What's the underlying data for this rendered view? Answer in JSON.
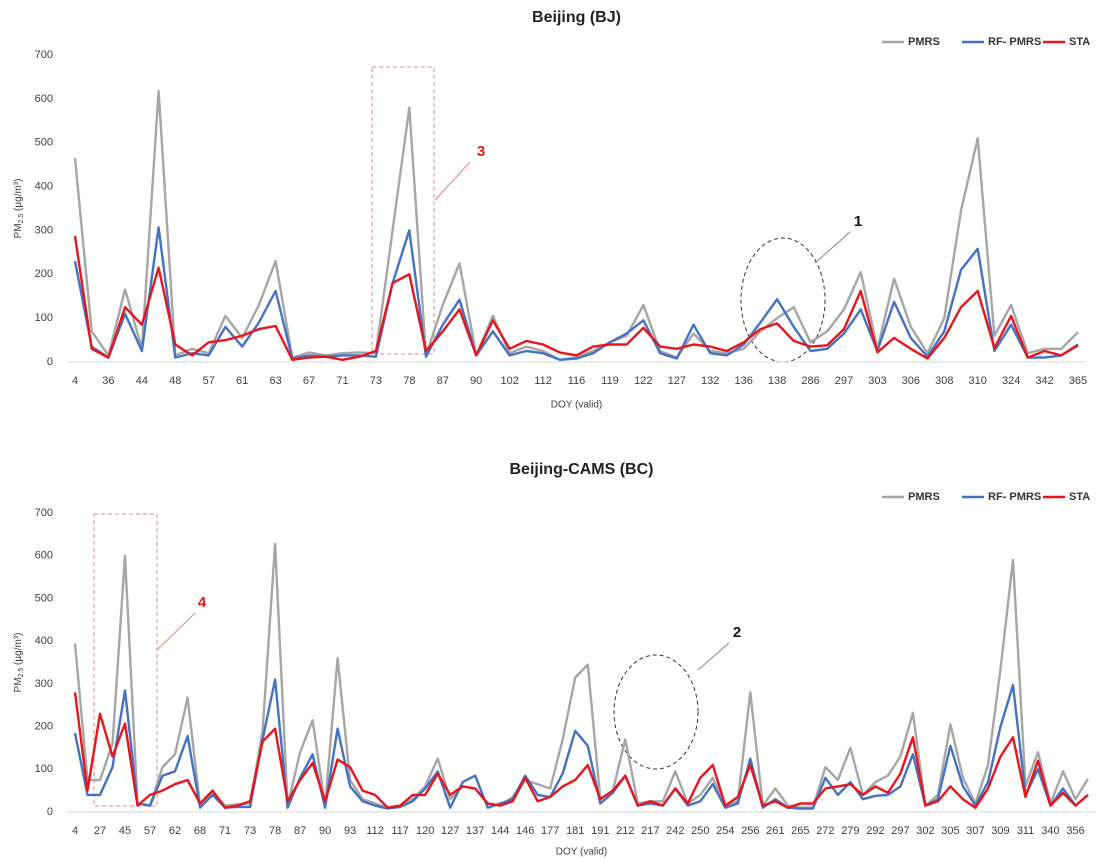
{
  "chart_data": [
    {
      "type": "line",
      "title": "Beijing (BJ)",
      "xlabel": "DOY (valid)",
      "ylabel": {
        "main": "PM",
        "sub": "2.5",
        "unit": " (µg/m³)"
      },
      "ylim": [
        0,
        700
      ],
      "yticks": [
        0,
        100,
        200,
        300,
        400,
        500,
        600,
        700
      ],
      "grid": false,
      "legend": "top-right",
      "categories": [
        "4",
        null,
        "36",
        null,
        "44",
        null,
        "48",
        null,
        "57",
        null,
        "61",
        null,
        "63",
        null,
        "67",
        null,
        "71",
        null,
        "73",
        null,
        "78",
        null,
        "87",
        null,
        "90",
        null,
        "102",
        null,
        "112",
        null,
        "116",
        null,
        "119",
        null,
        "122",
        null,
        "127",
        null,
        "132",
        null,
        "136",
        null,
        "138",
        null,
        "286",
        null,
        "297",
        null,
        "303",
        null,
        "306",
        null,
        "308",
        null,
        "310",
        null,
        "324",
        null,
        "342",
        null,
        "365"
      ],
      "series": [
        {
          "name": "PMRS",
          "color": "#a6a6a6",
          "values": [
            465,
            70,
            15,
            165,
            30,
            618,
            15,
            30,
            20,
            105,
            55,
            130,
            230,
            10,
            22,
            15,
            20,
            22,
            20,
            300,
            580,
            15,
            130,
            225,
            15,
            105,
            20,
            35,
            25,
            5,
            10,
            25,
            45,
            60,
            130,
            25,
            10,
            65,
            25,
            20,
            30,
            70,
            100,
            125,
            45,
            70,
            120,
            205,
            30,
            190,
            80,
            20,
            100,
            345,
            510,
            60,
            130,
            20,
            30,
            30,
            68
          ]
        },
        {
          "name": "RF- PMRS",
          "color": "#4472c4",
          "values": [
            230,
            35,
            10,
            110,
            25,
            307,
            10,
            20,
            15,
            80,
            35,
            90,
            162,
            8,
            15,
            12,
            15,
            15,
            12,
            180,
            300,
            12,
            85,
            142,
            15,
            70,
            15,
            25,
            20,
            5,
            8,
            20,
            45,
            65,
            95,
            20,
            8,
            85,
            20,
            15,
            40,
            90,
            143,
            80,
            25,
            30,
            65,
            120,
            25,
            137,
            55,
            12,
            70,
            210,
            258,
            25,
            85,
            10,
            10,
            15,
            40
          ]
        },
        {
          "name": "STA",
          "color": "#e8161b",
          "values": [
            287,
            30,
            10,
            125,
            85,
            215,
            40,
            15,
            45,
            50,
            60,
            75,
            82,
            5,
            10,
            12,
            5,
            12,
            25,
            180,
            200,
            25,
            70,
            120,
            15,
            95,
            30,
            48,
            40,
            22,
            15,
            35,
            40,
            40,
            78,
            35,
            30,
            40,
            35,
            25,
            45,
            75,
            88,
            48,
            35,
            38,
            75,
            162,
            22,
            55,
            30,
            8,
            55,
            125,
            162,
            32,
            105,
            10,
            25,
            15,
            38
          ]
        }
      ],
      "annotations": [
        {
          "text": "3",
          "color": "#e8161b"
        },
        {
          "text": "1",
          "color": "#111111"
        }
      ]
    },
    {
      "type": "line",
      "title": "Beijing-CAMS (BC)",
      "xlabel": "DOY (valid)",
      "ylabel": {
        "main": "PM",
        "sub": "2.5",
        "unit": " (µg/m³)"
      },
      "ylim": [
        0,
        700
      ],
      "yticks": [
        0,
        100,
        200,
        300,
        400,
        500,
        600,
        700
      ],
      "grid": false,
      "legend": "top-right",
      "categories": [
        "4",
        null,
        "27",
        null,
        "45",
        null,
        "57",
        null,
        "62",
        null,
        "68",
        null,
        "71",
        null,
        "73",
        null,
        "78",
        null,
        "87",
        null,
        "90",
        null,
        "93",
        null,
        "112",
        null,
        "117",
        null,
        "120",
        null,
        "127",
        null,
        "137",
        null,
        "144",
        null,
        "146",
        null,
        "177",
        null,
        "181",
        null,
        "191",
        null,
        "212",
        null,
        "217",
        null,
        "242",
        null,
        "250",
        null,
        "254",
        null,
        "256",
        null,
        "261",
        null,
        "265",
        null,
        "272",
        null,
        "279",
        null,
        "292",
        null,
        "297",
        null,
        "302",
        null,
        "305",
        null,
        "307",
        null,
        "309",
        null,
        "311",
        null,
        "340",
        null,
        "356",
        null
      ],
      "series": [
        {
          "name": "PMRS",
          "color": "#a6a6a6",
          "values": [
            395,
            75,
            75,
            160,
            600,
            20,
            15,
            105,
            135,
            268,
            15,
            45,
            15,
            18,
            20,
            190,
            628,
            15,
            140,
            215,
            15,
            360,
            75,
            30,
            20,
            10,
            15,
            30,
            60,
            125,
            30,
            60,
            55,
            20,
            15,
            35,
            75,
            65,
            55,
            170,
            315,
            345,
            30,
            50,
            170,
            20,
            25,
            25,
            95,
            20,
            40,
            80,
            15,
            25,
            280,
            15,
            55,
            15,
            10,
            10,
            105,
            75,
            150,
            40,
            70,
            85,
            130,
            232,
            15,
            40,
            205,
            80,
            20,
            110,
            335,
            590,
            60,
            140,
            20,
            95,
            30,
            78
          ]
        },
        {
          "name": "RF- PMRS",
          "color": "#4472c4",
          "values": [
            185,
            40,
            40,
            105,
            285,
            20,
            15,
            85,
            95,
            178,
            10,
            40,
            10,
            12,
            12,
            170,
            310,
            10,
            80,
            135,
            10,
            195,
            60,
            25,
            15,
            8,
            12,
            25,
            55,
            95,
            10,
            70,
            85,
            10,
            20,
            30,
            85,
            40,
            35,
            90,
            190,
            155,
            20,
            45,
            85,
            15,
            20,
            15,
            55,
            15,
            25,
            65,
            10,
            20,
            125,
            10,
            30,
            10,
            8,
            8,
            80,
            40,
            70,
            30,
            38,
            40,
            60,
            135,
            15,
            30,
            155,
            60,
            15,
            70,
            200,
            297,
            40,
            100,
            15,
            55,
            15,
            40
          ]
        },
        {
          "name": "STA",
          "color": "#e8161b",
          "values": [
            280,
            50,
            230,
            130,
            207,
            15,
            40,
            50,
            65,
            75,
            20,
            50,
            10,
            15,
            25,
            165,
            195,
            25,
            75,
            115,
            25,
            123,
            105,
            50,
            40,
            10,
            15,
            40,
            40,
            90,
            40,
            60,
            55,
            20,
            15,
            25,
            80,
            25,
            35,
            60,
            75,
            110,
            30,
            50,
            85,
            15,
            25,
            15,
            55,
            20,
            80,
            110,
            15,
            35,
            110,
            15,
            25,
            10,
            20,
            20,
            55,
            60,
            65,
            40,
            60,
            45,
            90,
            175,
            15,
            25,
            60,
            30,
            10,
            55,
            130,
            175,
            35,
            120,
            15,
            45,
            15,
            40
          ]
        }
      ],
      "annotations": [
        {
          "text": "4",
          "color": "#e8161b"
        },
        {
          "text": "2",
          "color": "#111111"
        }
      ]
    }
  ]
}
